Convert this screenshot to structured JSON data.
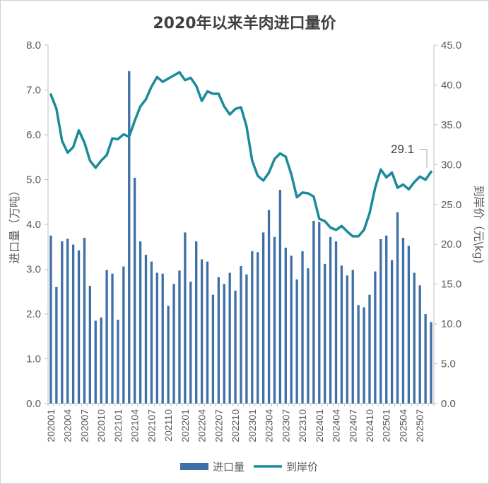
{
  "chart_data": {
    "type": "bar+line",
    "title": "2020年以来羊肉进口量价",
    "y_left": {
      "label": "进口量（万吨）",
      "ylim": [
        0,
        8
      ],
      "ticks": [
        "0.0",
        "1.0",
        "2.0",
        "3.0",
        "4.0",
        "5.0",
        "6.0",
        "7.0",
        "8.0"
      ]
    },
    "y_right": {
      "label": "到岸价（元\\kg)",
      "ylim": [
        0,
        45
      ],
      "ticks": [
        "0.0",
        "5.0",
        "10.0",
        "15.0",
        "20.0",
        "25.0",
        "30.0",
        "35.0",
        "40.0",
        "45.0"
      ]
    },
    "x_tick_labels": [
      "202001",
      "202004",
      "202007",
      "202010",
      "202101",
      "202104",
      "202107",
      "202110",
      "202201",
      "202204",
      "202207",
      "202210",
      "202301",
      "202304",
      "202307",
      "202310",
      "202401",
      "202404",
      "202407",
      "202410",
      "202501",
      "202504",
      "202507"
    ],
    "categories": [
      "202001",
      "202002",
      "202003",
      "202004",
      "202005",
      "202006",
      "202007",
      "202008",
      "202009",
      "202010",
      "202011",
      "202012",
      "202101",
      "202102",
      "202103",
      "202104",
      "202105",
      "202106",
      "202107",
      "202108",
      "202109",
      "202110",
      "202111",
      "202112",
      "202201",
      "202202",
      "202203",
      "202204",
      "202205",
      "202206",
      "202207",
      "202208",
      "202209",
      "202210",
      "202211",
      "202212",
      "202301",
      "202302",
      "202303",
      "202304",
      "202305",
      "202306",
      "202307",
      "202308",
      "202309",
      "202310",
      "202311",
      "202312",
      "202401",
      "202402",
      "202403",
      "202404",
      "202405",
      "202406",
      "202407",
      "202408",
      "202409",
      "202410",
      "202411",
      "202412",
      "202501",
      "202502",
      "202503",
      "202504",
      "202505",
      "202506",
      "202507",
      "202508",
      "202509"
    ],
    "series": [
      {
        "name": "进口量",
        "type": "bar",
        "axis": "left",
        "color": "#3f6fa7",
        "values": [
          3.75,
          2.6,
          3.62,
          3.68,
          3.55,
          3.42,
          3.7,
          2.63,
          1.85,
          1.92,
          2.98,
          2.9,
          1.87,
          3.06,
          7.42,
          5.04,
          3.62,
          3.32,
          3.17,
          2.92,
          2.9,
          2.18,
          2.67,
          2.97,
          3.82,
          2.72,
          3.62,
          3.22,
          3.17,
          2.43,
          2.82,
          2.67,
          2.92,
          2.52,
          3.07,
          2.88,
          3.4,
          3.38,
          3.82,
          4.32,
          3.72,
          4.77,
          3.48,
          3.3,
          2.77,
          3.4,
          3.02,
          4.08,
          4.05,
          3.12,
          3.72,
          3.62,
          3.08,
          2.86,
          2.98,
          2.2,
          2.15,
          2.43,
          2.95,
          3.67,
          3.75,
          3.2,
          4.27,
          3.7,
          3.52,
          2.92,
          2.64,
          2.0,
          1.82
        ]
      },
      {
        "name": "到岸价",
        "type": "line",
        "axis": "right",
        "color": "#1b8a9a",
        "values": [
          38.8,
          37.0,
          33.0,
          31.5,
          32.2,
          34.3,
          32.8,
          30.5,
          29.6,
          30.5,
          31.2,
          33.3,
          33.2,
          33.8,
          33.5,
          35.5,
          37.3,
          38.2,
          39.8,
          41.0,
          40.4,
          40.8,
          41.2,
          41.6,
          40.6,
          40.9,
          39.9,
          38.0,
          39.2,
          38.9,
          38.9,
          37.3,
          36.3,
          37.0,
          37.2,
          34.8,
          30.5,
          28.6,
          28.0,
          29.0,
          30.7,
          31.4,
          31.0,
          28.8,
          25.9,
          26.5,
          26.4,
          26.0,
          23.2,
          22.9,
          22.1,
          21.8,
          22.3,
          21.6,
          21.0,
          21.0,
          21.8,
          23.9,
          27.1,
          29.4,
          28.4,
          29.0,
          27.1,
          27.5,
          26.9,
          27.8,
          28.5,
          28.1,
          29.1
        ]
      }
    ],
    "annotations": [
      {
        "text": "29.1",
        "point": "202509"
      }
    ],
    "legend": {
      "position": "bottom",
      "items": [
        "进口量",
        "到岸价"
      ]
    },
    "grid": false
  }
}
